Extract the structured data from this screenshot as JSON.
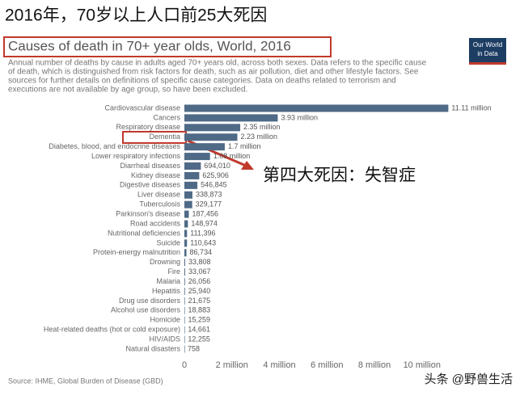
{
  "slide_title": "2016年，70岁以上人口前25大死因",
  "callout": "第四大死因：失智症",
  "watermark": "头条 @野兽生活",
  "logo": [
    "Our World",
    "in Data"
  ],
  "chart_data": {
    "type": "hbar",
    "title": "Causes of death in 70+ year olds, World, 2016",
    "subtitle": [
      "Annual number of deaths by cause in adults aged 70+ years old, across both sexes. Data refers to the specific cause",
      "of death, which is distinguished from risk factors for death, such as air pollution, diet and other lifestyle factors. See",
      "sources for further details on definitions of specific cause categories. Data on deaths related to terrorism and",
      "executions are not available by age group, so have been excluded."
    ],
    "source": "Source: IHME, Global Burden of Disease (GBD)",
    "color": "#4f6a86",
    "grid": false,
    "categories": [
      "Cardiovascular disease",
      "Cancers",
      "Respiratory disease",
      "Dementia",
      "Diabetes, blood, and endocrine diseases",
      "Lower respiratory infections",
      "Diarrheal diseases",
      "Kidney disease",
      "Digestive diseases",
      "Liver disease",
      "Tuberculosis",
      "Parkinson's disease",
      "Road accidents",
      "Nutritional deficiencies",
      "Suicide",
      "Protein-energy malnutrition",
      "Drowning",
      "Fire",
      "Malaria",
      "Hepatitis",
      "Drug use disorders",
      "Alcohol use disorders",
      "Homicide",
      "Heat-related deaths (hot or cold exposure)",
      "HIV/AIDS",
      "Natural disasters"
    ],
    "values": [
      11110000,
      3930000,
      2350000,
      2230000,
      1700000,
      1080000,
      694010,
      625906,
      546845,
      338873,
      329177,
      187456,
      148974,
      111396,
      110643,
      86734,
      33808,
      33067,
      26056,
      25940,
      21675,
      18883,
      15259,
      14661,
      12255,
      758
    ],
    "value_labels": [
      "11.11 million",
      "3.93 million",
      "2.35 million",
      "2.23 million",
      "1.7 million",
      "1.08 million",
      "694,010",
      "625,906",
      "546,845",
      "338,873",
      "329,177",
      "187,456",
      "148,974",
      "111,396",
      "110,643",
      "86,734",
      "33,808",
      "33,067",
      "26,056",
      "25,940",
      "21,675",
      "18,883",
      "15,259",
      "14,661",
      "12,255",
      "758"
    ],
    "xlim": [
      0,
      11300000
    ],
    "xticks": [
      0,
      {
        "value": 2000000,
        "label": "2 million"
      },
      {
        "value": 4000000,
        "label": "4 million"
      },
      {
        "value": 6000000,
        "label": "6 million"
      },
      {
        "value": 8000000,
        "label": "8 million"
      },
      {
        "value": 10000000,
        "label": "10 million"
      }
    ]
  }
}
